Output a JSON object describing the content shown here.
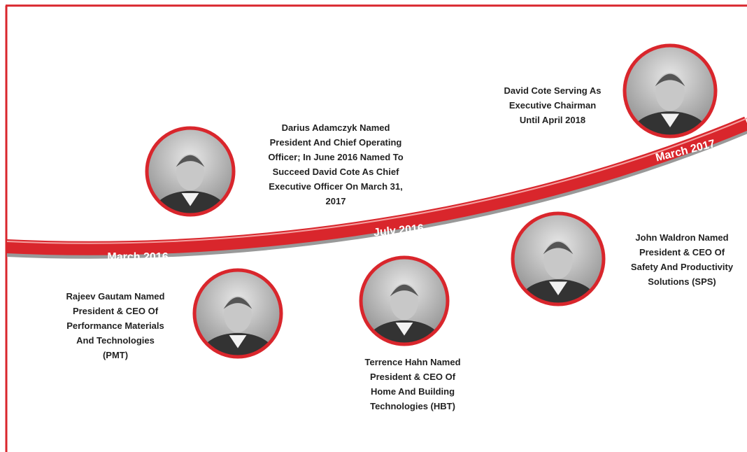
{
  "milestones": [
    "March 2016",
    "July 2016",
    "March 2017"
  ],
  "events": [
    {
      "lines": [
        "Darius Adamczyk Named",
        "President And Chief Operating",
        "Officer; In June 2016 Named To",
        "Succeed David Cote As Chief",
        "Executive Officer On March 31,",
        "2017"
      ]
    },
    {
      "lines": [
        "David Cote Serving As",
        "Executive Chairman",
        "Until April 2018"
      ]
    },
    {
      "lines": [
        "Rajeev Gautam Named",
        "President & CEO Of",
        "Performance Materials",
        "And Technologies",
        "(PMT)"
      ]
    },
    {
      "lines": [
        "Terrence Hahn Named",
        "President & CEO Of",
        "Home And Building",
        "Technologies (HBT)"
      ]
    },
    {
      "lines": [
        "John Waldron Named",
        "President & CEO Of",
        "Safety And Productivity",
        "Solutions (SPS)"
      ]
    }
  ]
}
